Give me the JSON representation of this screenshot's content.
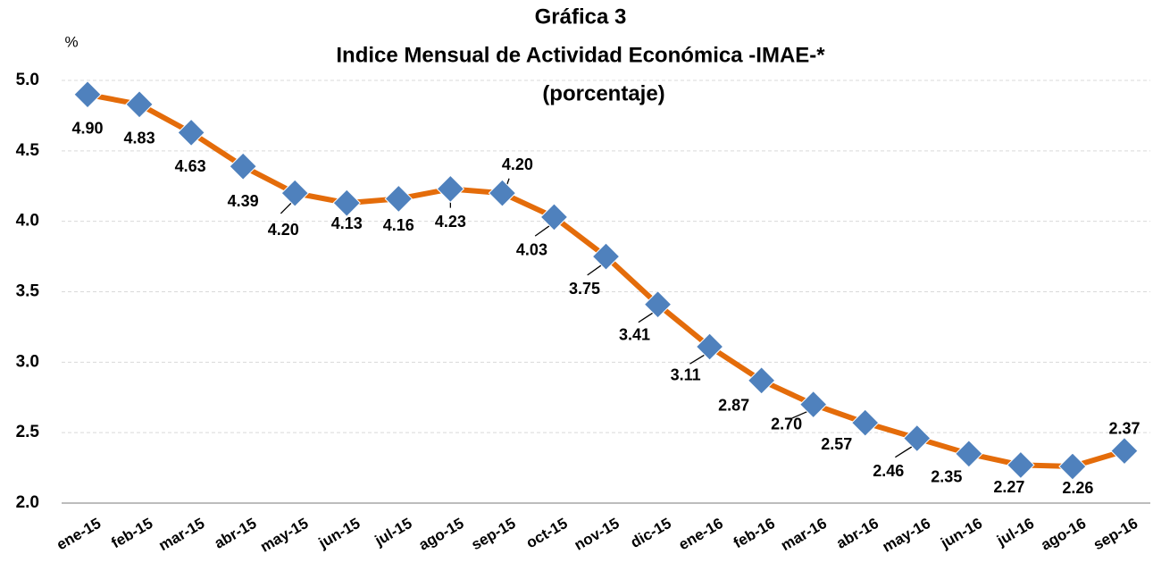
{
  "chart_data": {
    "type": "line",
    "title": "Gráfica 3",
    "subtitle": [
      "Indice Mensual de Actividad Económica -IMAE-*",
      "(porcentaje)"
    ],
    "y_label": "%",
    "categories": [
      "ene-15",
      "feb-15",
      "mar-15",
      "abr-15",
      "may-15",
      "jun-15",
      "jul-15",
      "ago-15",
      "sep-15",
      "oct-15",
      "nov-15",
      "dic-15",
      "ene-16",
      "feb-16",
      "mar-16",
      "abr-16",
      "may-16",
      "jun-16",
      "jul-16",
      "ago-16",
      "sep-16"
    ],
    "series": [
      {
        "name": "IMAE",
        "color": "#e46c0a",
        "marker_color": "#4f81bd",
        "values": [
          4.9,
          4.83,
          4.63,
          4.39,
          4.2,
          4.13,
          4.16,
          4.23,
          4.2,
          4.03,
          3.75,
          3.41,
          3.11,
          2.87,
          2.7,
          2.57,
          2.46,
          2.35,
          2.27,
          2.26,
          2.37
        ],
        "value_labels": [
          "4.90",
          "4.83",
          "4.63",
          "4.39",
          "4.20",
          "4.13",
          "4.16",
          "4.23",
          "4.20",
          "4.03",
          "3.75",
          "3.41",
          "3.11",
          "2.87",
          "2.70",
          "2.57",
          "2.46",
          "2.35",
          "2.27",
          "2.26",
          "2.37"
        ]
      }
    ],
    "ylim": [
      2,
      5
    ],
    "yticks": [
      {
        "value": 2,
        "label": "2.0"
      },
      {
        "value": 2.5,
        "label": "2.5"
      },
      {
        "value": 3,
        "label": "3.0"
      },
      {
        "value": 3.5,
        "label": "3.5"
      },
      {
        "value": 4,
        "label": "4.0"
      },
      {
        "value": 4.5,
        "label": "4.5"
      },
      {
        "value": 5,
        "label": "5.0"
      }
    ],
    "grid": true
  }
}
